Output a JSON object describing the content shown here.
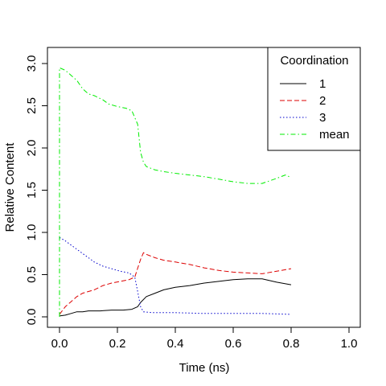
{
  "chart_data": {
    "type": "line",
    "title": "",
    "xlabel": "Time (ns)",
    "ylabel": "Relative Content",
    "xlim": [
      0,
      1.0
    ],
    "ylim": [
      0,
      3.0
    ],
    "x_ticks": [
      "0.0",
      "0.2",
      "0.4",
      "0.6",
      "0.8",
      "1.0"
    ],
    "y_ticks": [
      "0.0",
      "0.5",
      "1.0",
      "1.5",
      "2.0",
      "2.5",
      "3.0"
    ],
    "grid": false,
    "legend": {
      "title": "Coordination",
      "position": "top-right"
    },
    "series": [
      {
        "name": "1",
        "color": "#000000",
        "dash": "solid",
        "points": [
          [
            0.0,
            0.01
          ],
          [
            0.02,
            0.02
          ],
          [
            0.04,
            0.04
          ],
          [
            0.06,
            0.06
          ],
          [
            0.08,
            0.06
          ],
          [
            0.1,
            0.07
          ],
          [
            0.14,
            0.07
          ],
          [
            0.18,
            0.08
          ],
          [
            0.22,
            0.08
          ],
          [
            0.25,
            0.09
          ],
          [
            0.27,
            0.12
          ],
          [
            0.28,
            0.17
          ],
          [
            0.3,
            0.24
          ],
          [
            0.33,
            0.28
          ],
          [
            0.36,
            0.32
          ],
          [
            0.4,
            0.35
          ],
          [
            0.45,
            0.37
          ],
          [
            0.5,
            0.4
          ],
          [
            0.55,
            0.42
          ],
          [
            0.6,
            0.44
          ],
          [
            0.65,
            0.45
          ],
          [
            0.7,
            0.45
          ],
          [
            0.75,
            0.41
          ],
          [
            0.8,
            0.38
          ]
        ]
      },
      {
        "name": "2",
        "color": "#dd0000",
        "dash": "dashed",
        "points": [
          [
            0.0,
            0.03
          ],
          [
            0.02,
            0.12
          ],
          [
            0.04,
            0.18
          ],
          [
            0.06,
            0.24
          ],
          [
            0.08,
            0.28
          ],
          [
            0.1,
            0.3
          ],
          [
            0.12,
            0.32
          ],
          [
            0.15,
            0.37
          ],
          [
            0.18,
            0.4
          ],
          [
            0.21,
            0.42
          ],
          [
            0.24,
            0.44
          ],
          [
            0.26,
            0.47
          ],
          [
            0.28,
            0.68
          ],
          [
            0.29,
            0.76
          ],
          [
            0.3,
            0.74
          ],
          [
            0.33,
            0.7
          ],
          [
            0.36,
            0.67
          ],
          [
            0.4,
            0.65
          ],
          [
            0.45,
            0.62
          ],
          [
            0.5,
            0.58
          ],
          [
            0.55,
            0.55
          ],
          [
            0.6,
            0.53
          ],
          [
            0.65,
            0.52
          ],
          [
            0.7,
            0.51
          ],
          [
            0.75,
            0.54
          ],
          [
            0.8,
            0.57
          ]
        ]
      },
      {
        "name": "3",
        "color": "#0000cc",
        "dash": "dotted",
        "points": [
          [
            0.0,
            0.94
          ],
          [
            0.02,
            0.9
          ],
          [
            0.04,
            0.85
          ],
          [
            0.06,
            0.8
          ],
          [
            0.08,
            0.75
          ],
          [
            0.1,
            0.7
          ],
          [
            0.12,
            0.65
          ],
          [
            0.15,
            0.6
          ],
          [
            0.18,
            0.57
          ],
          [
            0.21,
            0.54
          ],
          [
            0.24,
            0.52
          ],
          [
            0.26,
            0.47
          ],
          [
            0.27,
            0.3
          ],
          [
            0.28,
            0.12
          ],
          [
            0.29,
            0.06
          ],
          [
            0.32,
            0.05
          ],
          [
            0.4,
            0.05
          ],
          [
            0.5,
            0.04
          ],
          [
            0.6,
            0.04
          ],
          [
            0.7,
            0.04
          ],
          [
            0.8,
            0.03
          ]
        ]
      },
      {
        "name": "mean",
        "color": "#00ee00",
        "dash": "dashdot",
        "points": [
          [
            0.0,
            0.0
          ],
          [
            0.0,
            2.95
          ],
          [
            0.02,
            2.92
          ],
          [
            0.04,
            2.86
          ],
          [
            0.06,
            2.8
          ],
          [
            0.08,
            2.7
          ],
          [
            0.1,
            2.64
          ],
          [
            0.12,
            2.62
          ],
          [
            0.15,
            2.57
          ],
          [
            0.17,
            2.52
          ],
          [
            0.2,
            2.49
          ],
          [
            0.23,
            2.47
          ],
          [
            0.25,
            2.44
          ],
          [
            0.27,
            2.28
          ],
          [
            0.28,
            1.95
          ],
          [
            0.29,
            1.83
          ],
          [
            0.3,
            1.78
          ],
          [
            0.33,
            1.74
          ],
          [
            0.36,
            1.72
          ],
          [
            0.4,
            1.7
          ],
          [
            0.45,
            1.68
          ],
          [
            0.5,
            1.66
          ],
          [
            0.55,
            1.63
          ],
          [
            0.6,
            1.6
          ],
          [
            0.65,
            1.58
          ],
          [
            0.7,
            1.58
          ],
          [
            0.75,
            1.64
          ],
          [
            0.78,
            1.68
          ],
          [
            0.8,
            1.65
          ]
        ]
      }
    ]
  }
}
